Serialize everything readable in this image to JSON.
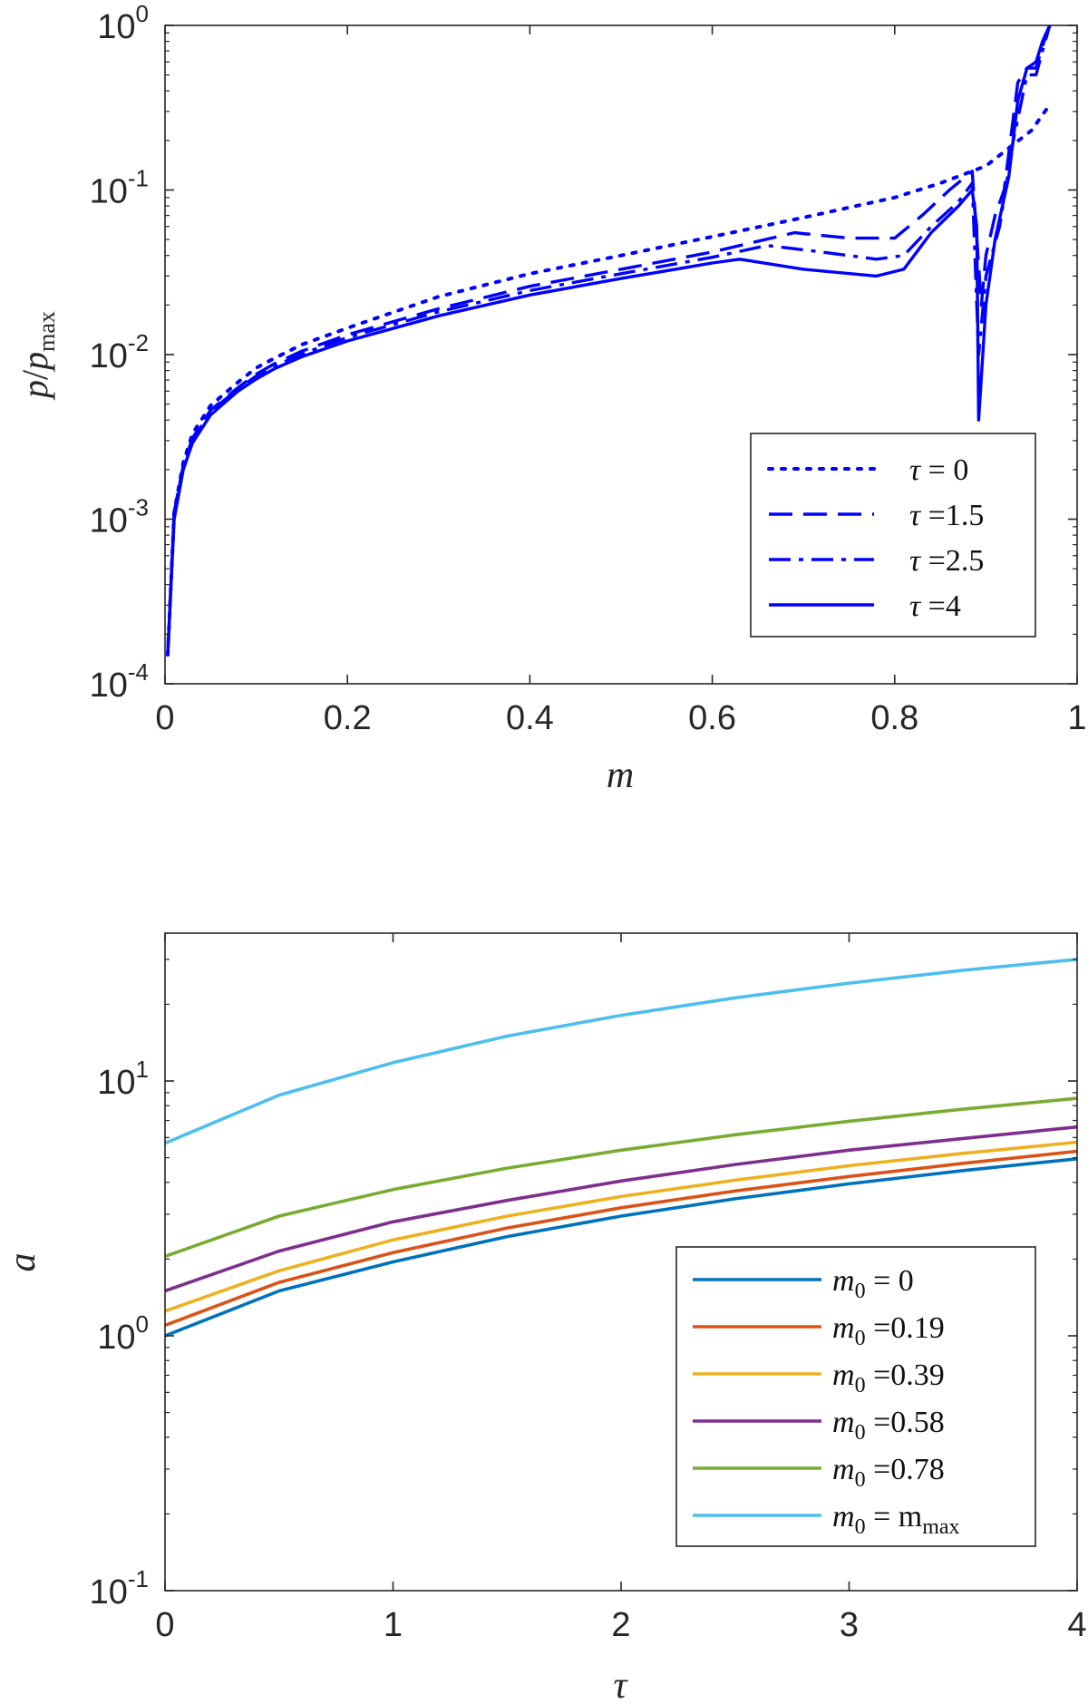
{
  "chart_data": [
    {
      "type": "line",
      "xlabel": "m",
      "ylabel": "p/p_max",
      "xlim": [
        0,
        1
      ],
      "ylim": [
        0.0001,
        1
      ],
      "yscale": "log",
      "grid": false,
      "legend_position": "lower-right",
      "x_tick_labels": [
        "0",
        "0.2",
        "0.4",
        "0.6",
        "0.8",
        "1"
      ],
      "y_tick_labels": [
        {
          "base": "10",
          "exp": "-4"
        },
        {
          "base": "10",
          "exp": "-3"
        },
        {
          "base": "10",
          "exp": "-2"
        },
        {
          "base": "10",
          "exp": "-1"
        },
        {
          "base": "10",
          "exp": "0"
        }
      ],
      "line_color": "#0000ff",
      "series": [
        {
          "name": "τ = 0",
          "label_lhs": "τ",
          "label_rhs": "= 0",
          "dash": "dotted",
          "x": [
            0.003,
            0.01,
            0.02,
            0.03,
            0.05,
            0.08,
            0.1,
            0.12,
            0.15,
            0.2,
            0.3,
            0.4,
            0.5,
            0.6,
            0.7,
            0.8,
            0.85,
            0.9,
            0.95,
            0.97
          ],
          "y": [
            0.00015,
            0.0011,
            0.0022,
            0.0033,
            0.0049,
            0.0068,
            0.0083,
            0.0095,
            0.0115,
            0.0145,
            0.0225,
            0.031,
            0.04,
            0.052,
            0.068,
            0.09,
            0.11,
            0.14,
            0.23,
            0.33
          ]
        },
        {
          "name": "τ =1.5",
          "label_lhs": "τ",
          "label_rhs": "=1.5",
          "dash": "dashed",
          "x": [
            0.003,
            0.01,
            0.02,
            0.03,
            0.05,
            0.08,
            0.1,
            0.12,
            0.15,
            0.2,
            0.3,
            0.4,
            0.5,
            0.6,
            0.69,
            0.75,
            0.8,
            0.83,
            0.86,
            0.885,
            0.895,
            0.9,
            0.91,
            0.92,
            0.935,
            0.945,
            0.955,
            0.962,
            0.97
          ],
          "y": [
            0.00015,
            0.0011,
            0.0021,
            0.0031,
            0.0046,
            0.0063,
            0.0076,
            0.0088,
            0.0105,
            0.0132,
            0.019,
            0.026,
            0.033,
            0.042,
            0.055,
            0.051,
            0.051,
            0.07,
            0.1,
            0.13,
            0.02,
            0.04,
            0.07,
            0.1,
            0.45,
            0.55,
            0.55,
            0.75,
            1.0
          ]
        },
        {
          "name": "τ =2.5",
          "label_lhs": "τ",
          "label_rhs": "=2.5",
          "dash": "dashdot",
          "x": [
            0.003,
            0.01,
            0.02,
            0.03,
            0.05,
            0.08,
            0.1,
            0.12,
            0.15,
            0.2,
            0.3,
            0.4,
            0.5,
            0.6,
            0.66,
            0.72,
            0.78,
            0.81,
            0.84,
            0.87,
            0.885,
            0.892,
            0.9,
            0.915,
            0.93,
            0.945,
            0.955,
            0.962,
            0.97
          ],
          "y": [
            0.00015,
            0.0011,
            0.0021,
            0.003,
            0.0045,
            0.0062,
            0.0074,
            0.0085,
            0.0101,
            0.0127,
            0.0182,
            0.0245,
            0.031,
            0.039,
            0.046,
            0.042,
            0.038,
            0.04,
            0.06,
            0.085,
            0.11,
            0.01,
            0.03,
            0.06,
            0.2,
            0.5,
            0.5,
            0.7,
            1.0
          ]
        },
        {
          "name": "τ =4",
          "label_lhs": "τ",
          "label_rhs": "=4",
          "dash": "solid",
          "x": [
            0.003,
            0.01,
            0.02,
            0.03,
            0.05,
            0.08,
            0.1,
            0.12,
            0.15,
            0.2,
            0.3,
            0.4,
            0.5,
            0.6,
            0.63,
            0.7,
            0.78,
            0.81,
            0.84,
            0.87,
            0.885,
            0.89,
            0.892,
            0.9,
            0.91,
            0.925,
            0.935,
            0.945,
            0.955,
            0.962,
            0.97
          ],
          "y": [
            0.00015,
            0.001,
            0.002,
            0.0029,
            0.0043,
            0.006,
            0.0071,
            0.0082,
            0.0097,
            0.0121,
            0.0172,
            0.023,
            0.029,
            0.036,
            0.038,
            0.033,
            0.03,
            0.033,
            0.055,
            0.08,
            0.1,
            0.06,
            0.004,
            0.02,
            0.05,
            0.12,
            0.35,
            0.55,
            0.6,
            0.8,
            1.0
          ]
        }
      ]
    },
    {
      "type": "line",
      "xlabel": "τ",
      "ylabel": "a",
      "xlim": [
        0,
        4
      ],
      "ylim": [
        0.1,
        40
      ],
      "yscale": "log",
      "grid": false,
      "legend_position": "lower-right",
      "x_tick_labels": [
        "0",
        "1",
        "2",
        "3",
        "4"
      ],
      "y_tick_labels": [
        {
          "base": "10",
          "exp": "-1"
        },
        {
          "base": "10",
          "exp": "0"
        },
        {
          "base": "10",
          "exp": "1"
        }
      ],
      "x": [
        0,
        0.5,
        1,
        1.5,
        2,
        2.5,
        3,
        3.5,
        4
      ],
      "series": [
        {
          "name": "m0 = 0",
          "label_rhs": "= 0",
          "label_sub": "",
          "color": "#0072bd",
          "values": [
            1.0,
            1.5,
            1.95,
            2.45,
            2.95,
            3.45,
            3.95,
            4.45,
            4.95
          ]
        },
        {
          "name": "m0 =0.19",
          "label_rhs": "=0.19",
          "label_sub": "",
          "color": "#d95319",
          "values": [
            1.1,
            1.62,
            2.12,
            2.65,
            3.18,
            3.7,
            4.22,
            4.75,
            5.3
          ]
        },
        {
          "name": "m0 =0.39",
          "label_rhs": "=0.39",
          "label_sub": "",
          "color": "#edb120",
          "values": [
            1.25,
            1.8,
            2.38,
            2.95,
            3.52,
            4.08,
            4.65,
            5.2,
            5.75
          ]
        },
        {
          "name": "m0 =0.58",
          "label_rhs": "=0.58",
          "label_sub": "",
          "color": "#7e2f8e",
          "values": [
            1.5,
            2.15,
            2.8,
            3.4,
            4.05,
            4.7,
            5.35,
            5.95,
            6.6
          ]
        },
        {
          "name": "m0 =0.78",
          "label_rhs": "=0.78",
          "label_sub": "",
          "color": "#77ac30",
          "values": [
            2.05,
            2.95,
            3.75,
            4.55,
            5.35,
            6.15,
            6.95,
            7.75,
            8.55
          ]
        },
        {
          "name": "m0 = m_max",
          "label_rhs": "= m",
          "label_sub": "max",
          "color": "#4dbeee",
          "values": [
            5.7,
            8.8,
            11.8,
            15.0,
            18.1,
            21.2,
            24.2,
            27.2,
            30.0
          ]
        }
      ]
    }
  ]
}
